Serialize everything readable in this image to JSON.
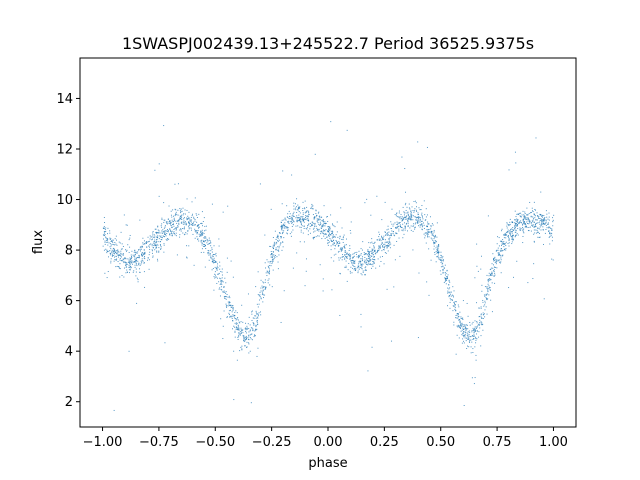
{
  "chart_data": {
    "type": "scatter",
    "title": "1SWASPJ002439.13+245522.7 Period 36525.9375s",
    "xlabel": "phase",
    "ylabel": "flux",
    "xlim": [
      -1.1,
      1.1
    ],
    "ylim": [
      1.0,
      15.6
    ],
    "grid": false,
    "legend": "none",
    "color": "#1f77b4",
    "x_ticks": [
      {
        "value": -1.0,
        "label": "−1.00"
      },
      {
        "value": -0.75,
        "label": "−0.75"
      },
      {
        "value": -0.5,
        "label": "−0.50"
      },
      {
        "value": -0.25,
        "label": "−0.25"
      },
      {
        "value": 0.0,
        "label": "0.00"
      },
      {
        "value": 0.25,
        "label": "0.25"
      },
      {
        "value": 0.5,
        "label": "0.50"
      },
      {
        "value": 0.75,
        "label": "0.75"
      },
      {
        "value": 1.0,
        "label": "1.00"
      }
    ],
    "y_ticks": [
      {
        "value": 2,
        "label": "2"
      },
      {
        "value": 4,
        "label": "4"
      },
      {
        "value": 6,
        "label": "6"
      },
      {
        "value": 8,
        "label": "8"
      },
      {
        "value": 10,
        "label": "10"
      },
      {
        "value": 12,
        "label": "12"
      },
      {
        "value": 14,
        "label": "14"
      }
    ],
    "series": [
      {
        "x": [
          -1.0,
          -0.95,
          -0.9,
          -0.85,
          -0.8,
          -0.75,
          -0.7,
          -0.65,
          -0.6,
          -0.55,
          -0.5,
          -0.45,
          -0.4,
          -0.37,
          -0.35,
          -0.32,
          -0.3,
          -0.25,
          -0.2,
          -0.15,
          -0.1,
          -0.05,
          0.0,
          0.05,
          0.1,
          0.15,
          0.2,
          0.25,
          0.3,
          0.35,
          0.4,
          0.45,
          0.5,
          0.55,
          0.6,
          0.63,
          0.65,
          0.68,
          0.7,
          0.75,
          0.8,
          0.85,
          0.9,
          0.95,
          1.0
        ],
        "y": [
          8.6,
          8.0,
          7.6,
          7.6,
          8.0,
          8.6,
          9.0,
          9.2,
          9.1,
          8.5,
          7.4,
          6.0,
          4.9,
          4.6,
          4.7,
          5.2,
          6.1,
          7.8,
          8.9,
          9.3,
          9.3,
          9.1,
          8.7,
          8.2,
          7.6,
          7.5,
          7.8,
          8.4,
          9.0,
          9.3,
          9.3,
          8.8,
          7.6,
          5.9,
          4.8,
          4.6,
          4.8,
          5.3,
          6.2,
          7.8,
          8.7,
          9.1,
          9.2,
          9.1,
          8.8
        ]
      }
    ]
  }
}
